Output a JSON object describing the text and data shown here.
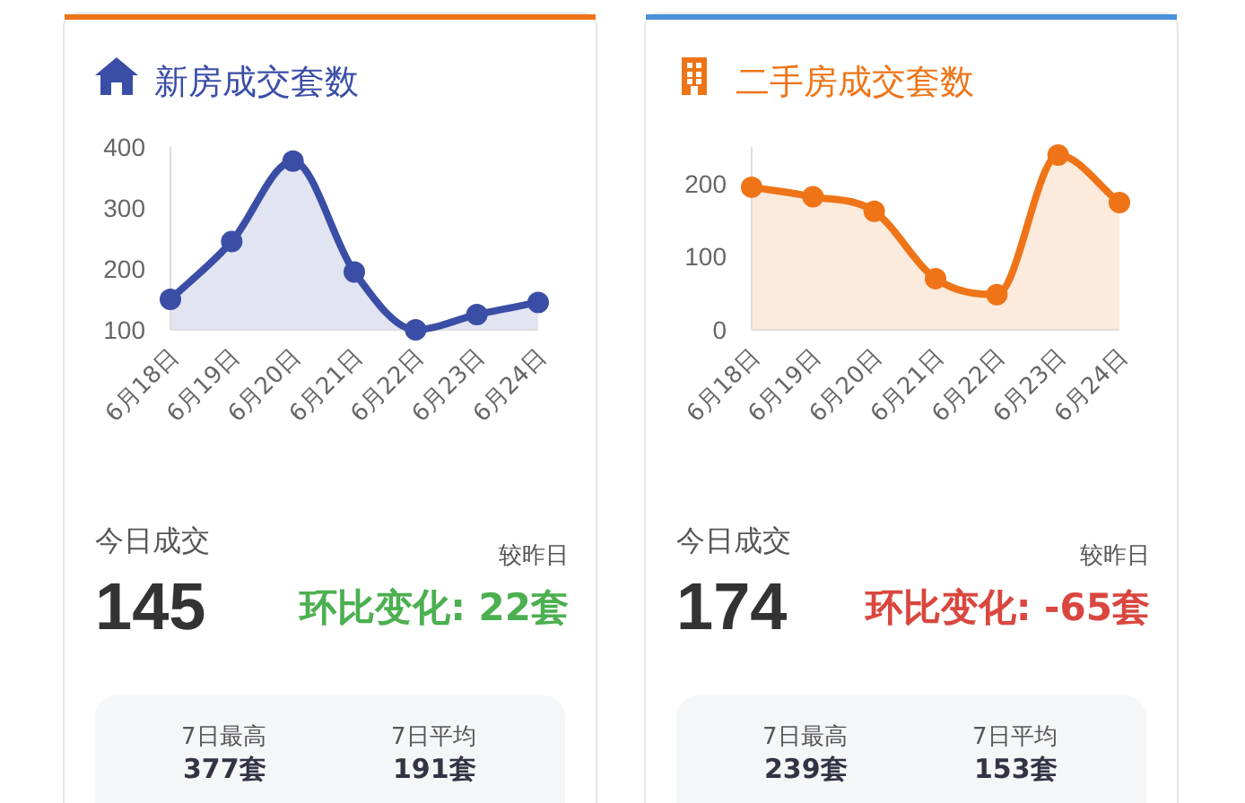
{
  "chart_data": [
    {
      "type": "area",
      "title": "新房成交套数",
      "categories": [
        "6月18日",
        "6月19日",
        "6月20日",
        "6月21日",
        "6月22日",
        "6月23日",
        "6月24日"
      ],
      "values": [
        150,
        245,
        377,
        195,
        100,
        125,
        145
      ],
      "color": "#3b4ea6",
      "marker": "circle",
      "ylim": [
        100,
        400
      ],
      "yticks": [
        100,
        200,
        300,
        400
      ]
    },
    {
      "type": "other",
      "annotations": [
        "今日成交",
        "145",
        "较昨日",
        "环比变化: 22套",
        "7日最高",
        "377套",
        "7日平均",
        "191套"
      ]
    },
    {
      "type": "area",
      "title": "二手房成交套数",
      "categories": [
        "6月18日",
        "6月19日",
        "6月20日",
        "6月21日",
        "6月22日",
        "6月23日",
        "6月24日"
      ],
      "values": [
        195,
        182,
        162,
        70,
        48,
        239,
        174
      ],
      "color": "#ee7417",
      "marker": "circle",
      "ylim": [
        0,
        250
      ],
      "yticks": [
        0,
        100,
        200
      ]
    },
    {
      "type": "other",
      "annotations": [
        "今日成交",
        "174",
        "较昨日",
        "环比变化: -65套",
        "7日最高",
        "239套",
        "7日平均",
        "153套"
      ]
    }
  ]
}
